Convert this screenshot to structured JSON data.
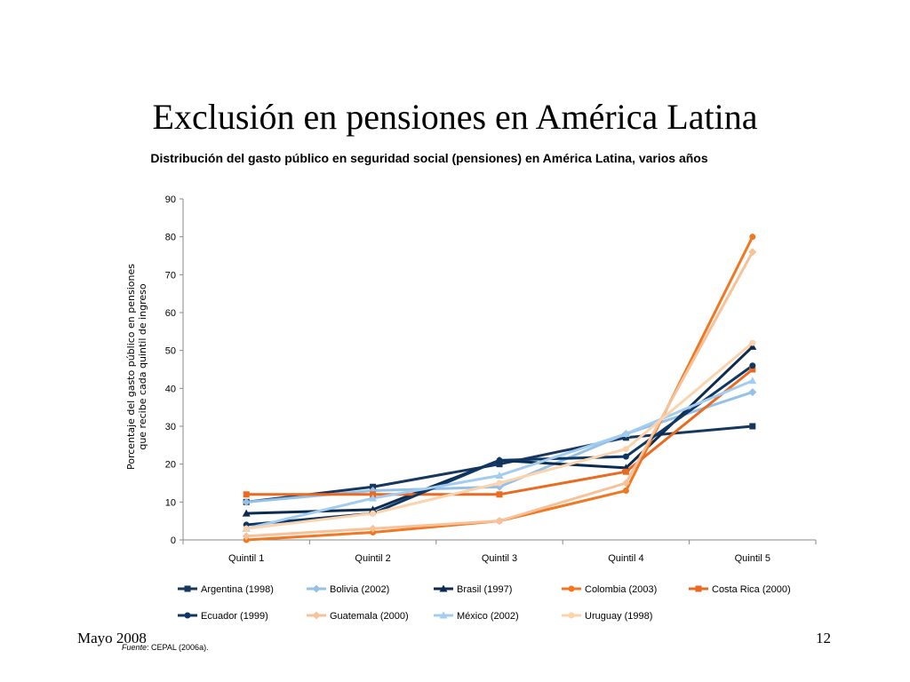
{
  "slide": {
    "title": "Exclusión en pensiones en América Latina",
    "footer_left": "Mayo 2008",
    "footer_right": "12",
    "source_prefix": "Fuente",
    "source_text": ": CEPAL (2006a)."
  },
  "chart_data": {
    "type": "line",
    "title": "Distribución del gasto público en seguridad social (pensiones) en América Latina, varios años",
    "ylabel_line1": "Porcentaje del gasto público en pensiones",
    "ylabel_line2": "que recibe cada quintil de ingreso",
    "xlabel": "",
    "categories": [
      "Quintil 1",
      "Quintil 2",
      "Quintil 3",
      "Quintil 4",
      "Quintil 5"
    ],
    "ylim": [
      0,
      90
    ],
    "yticks": [
      0,
      10,
      20,
      30,
      40,
      50,
      60,
      70,
      80,
      90
    ],
    "legend_position": "bottom",
    "series": [
      {
        "name": "Argentina (1998)",
        "color": "#17375e",
        "marker": "square",
        "values": [
          10,
          14,
          20,
          27,
          30
        ]
      },
      {
        "name": "Bolivia (2002)",
        "color": "#95c1e8",
        "marker": "diamond",
        "values": [
          10,
          13,
          14,
          28,
          39
        ]
      },
      {
        "name": "Brasil (1997)",
        "color": "#0d2b50",
        "marker": "triangle",
        "values": [
          7,
          8,
          21,
          19,
          51
        ]
      },
      {
        "name": "Colombia (2003)",
        "color": "#f07822",
        "marker": "circle",
        "values": [
          0,
          2,
          5,
          13,
          80
        ]
      },
      {
        "name": "Costa Rica (2000)",
        "color": "#ea6a1f",
        "marker": "square",
        "values": [
          12,
          12,
          12,
          18,
          45
        ]
      },
      {
        "name": "Ecuador (1999)",
        "color": "#0f3763",
        "marker": "circle",
        "values": [
          4,
          7,
          21,
          22,
          46
        ]
      },
      {
        "name": "Guatemala (2000)",
        "color": "#f7c29a",
        "marker": "diamond",
        "values": [
          1,
          3,
          5,
          15,
          76
        ]
      },
      {
        "name": "México (2002)",
        "color": "#a3cdf0",
        "marker": "triangle",
        "values": [
          3,
          11,
          17,
          28,
          42
        ]
      },
      {
        "name": "Uruguay (1998)",
        "color": "#fbd3ad",
        "marker": "circle",
        "values": [
          3,
          7,
          15,
          24,
          52
        ]
      }
    ]
  }
}
